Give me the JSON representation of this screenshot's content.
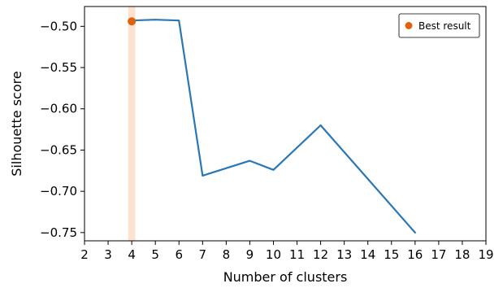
{
  "chart_data": {
    "type": "line",
    "xlabel": "Number of clusters",
    "ylabel": "Silhouette score",
    "xlim": [
      2,
      19
    ],
    "ylim": [
      -0.76,
      -0.476
    ],
    "xticks": [
      2,
      3,
      4,
      5,
      6,
      7,
      8,
      9,
      10,
      11,
      12,
      13,
      14,
      15,
      16,
      17,
      18,
      19
    ],
    "yticks": [
      -0.75,
      -0.7,
      -0.65,
      -0.6,
      -0.55,
      -0.5
    ],
    "ytick_labels": [
      "−0.75",
      "−0.70",
      "−0.65",
      "−0.60",
      "−0.55",
      "−0.50"
    ],
    "series": [
      {
        "x": [
          4,
          5,
          6,
          7,
          9,
          10,
          12,
          16
        ],
        "y": [
          -0.493,
          -0.492,
          -0.493,
          -0.681,
          -0.663,
          -0.674,
          -0.62,
          -0.75
        ],
        "color": "#2a77b4"
      }
    ],
    "best": {
      "x": 4,
      "y": -0.494,
      "label": "Best result",
      "color": "#e0620f"
    },
    "highlight_band": {
      "x": [
        3.85,
        4.15
      ],
      "color": "#fde3cf"
    },
    "legend": {
      "entries": [
        "Best result"
      ],
      "placement": "top-right"
    },
    "grid": false
  }
}
